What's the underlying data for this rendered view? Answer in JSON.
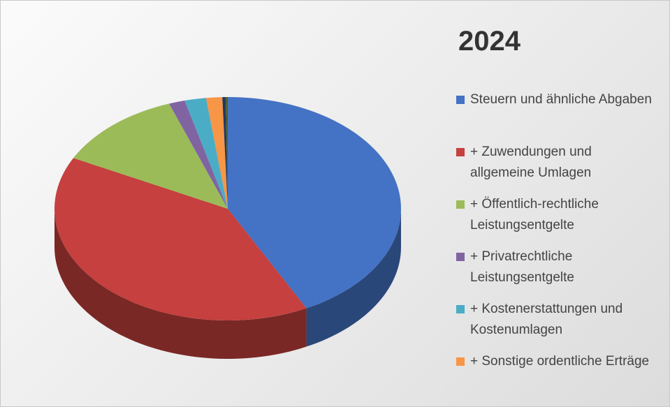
{
  "chart_data": {
    "type": "pie3d",
    "title": "2024",
    "categories": [
      "Steuern und ähnliche Abgaben",
      "+ Zuwendungen und allgemeine Umlagen",
      "+ Öffentlich-rechtliche Leistungsentgelte",
      "+ Privatrechtliche Leistungsentgelte",
      "+ Kostenerstattungen und Kostenumlagen",
      "+ Sonstige ordentliche Erträge",
      null,
      null
    ],
    "values": [
      42.5,
      40,
      12,
      1.5,
      2,
      1.5,
      0.3,
      0.2
    ],
    "colors": [
      "#4472c4",
      "#c5403e",
      "#9bbb59",
      "#8064a2",
      "#4bacc6",
      "#f79646",
      "#1f3864",
      "#4f6228"
    ],
    "legend": "right"
  }
}
